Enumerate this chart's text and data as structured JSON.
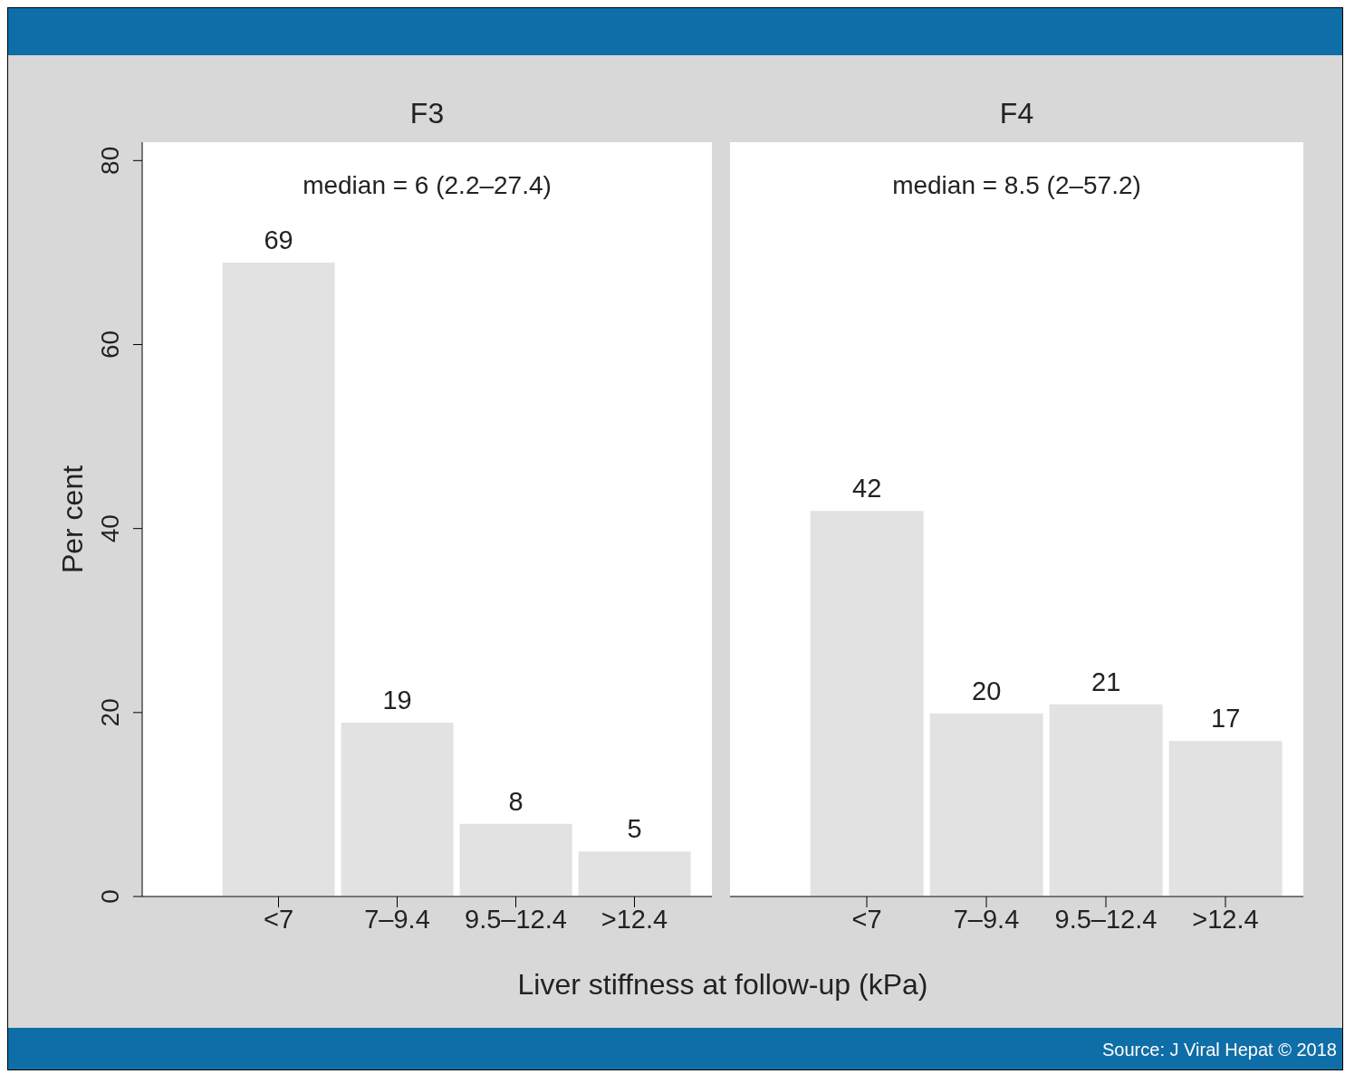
{
  "chart_data": [
    {
      "type": "bar",
      "title": "F3",
      "ylabel": "Per cent",
      "xlabel": "Liver stiffness at follow-up (kPa)",
      "categories": [
        "<7",
        "7–9.4",
        "9.5–12.4",
        ">12.4"
      ],
      "values": [
        69,
        19,
        8,
        5
      ],
      "color": "#e2e2e2",
      "ylim": [
        0,
        82
      ],
      "yticks": [
        0,
        20,
        40,
        60,
        80
      ],
      "data_labels": true,
      "annotations": [
        "median = 6 (2.2–27.4)",
        "Source: J Viral Hepat © 2018"
      ]
    },
    {
      "type": "bar",
      "title": "F4",
      "categories": [
        "<7",
        "7–9.4",
        "9.5–12.4",
        ">12.4"
      ],
      "values": [
        42,
        20,
        21,
        17
      ],
      "color": "#e2e2e2",
      "ylim": [
        0,
        82
      ],
      "yticks": [
        0,
        20,
        40,
        60,
        80
      ],
      "tick_labels": "x",
      "data_labels": true,
      "annotations": [
        "median = 8.5 (2–57.2)"
      ]
    }
  ]
}
